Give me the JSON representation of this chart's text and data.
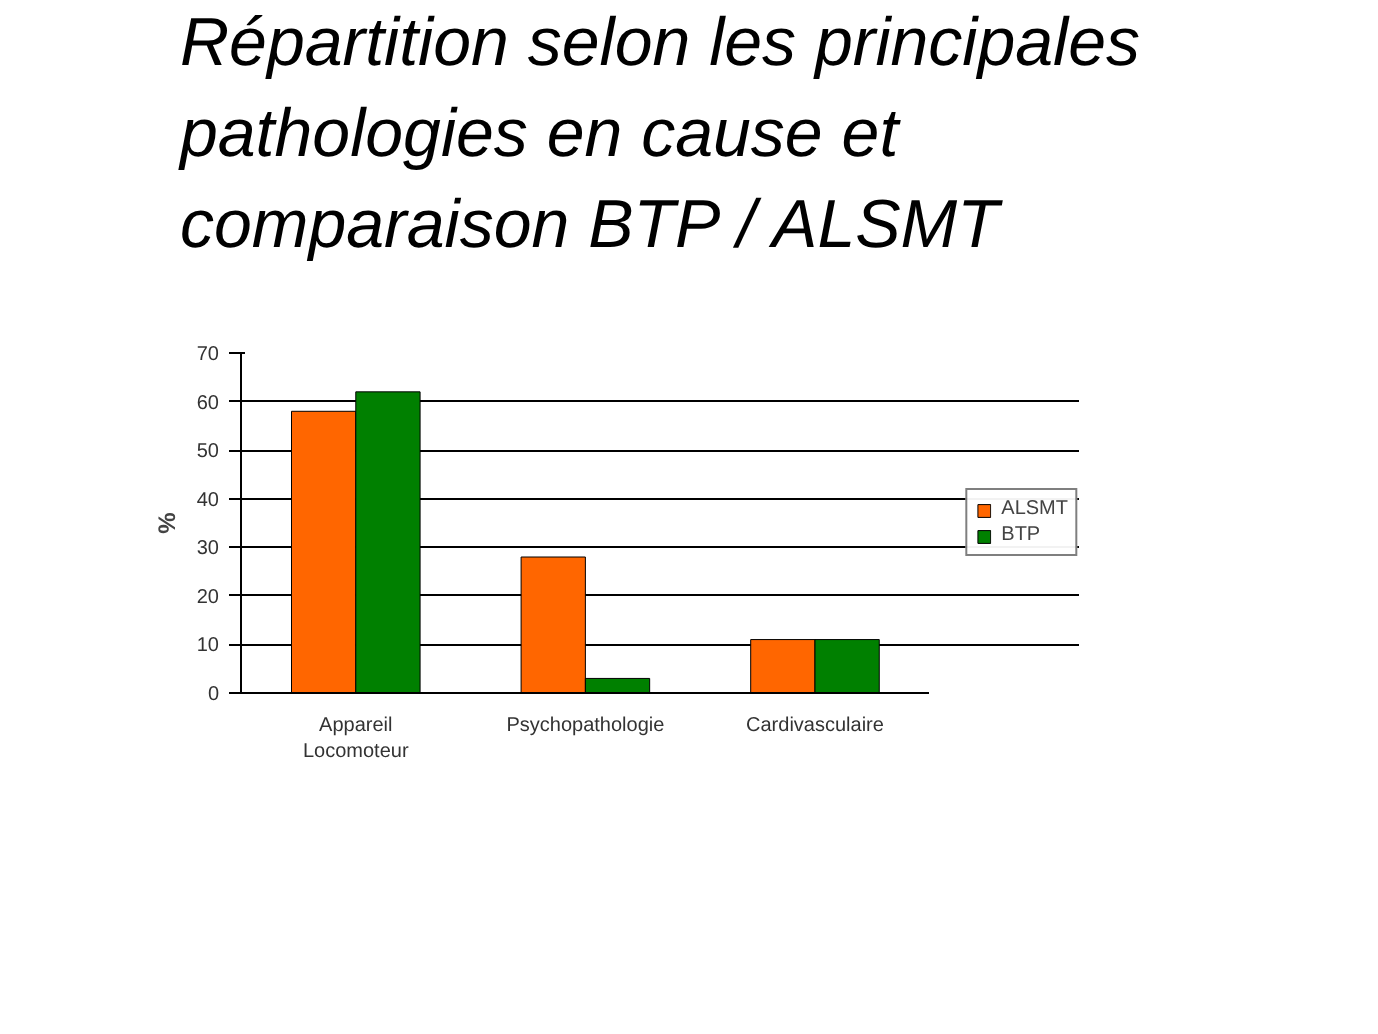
{
  "chart_data": {
    "type": "bar",
    "title": "Répartition selon les principales pathologies en cause et comparaison BTP / ALSMT",
    "ylabel": "%",
    "categories": [
      "Appareil\nLocomoteur",
      "Psychopathologie",
      "Cardivasculaire"
    ],
    "series": [
      {
        "name": "ALSMT",
        "color": "#ff6600",
        "values": [
          58,
          28,
          11
        ]
      },
      {
        "name": "BTP",
        "color": "#008000",
        "values": [
          62,
          3,
          11
        ]
      }
    ],
    "ylim": [
      0,
      70
    ],
    "yticks": [
      0,
      10,
      20,
      30,
      40,
      50,
      60,
      70
    ],
    "grid": "y",
    "legend": "right"
  }
}
